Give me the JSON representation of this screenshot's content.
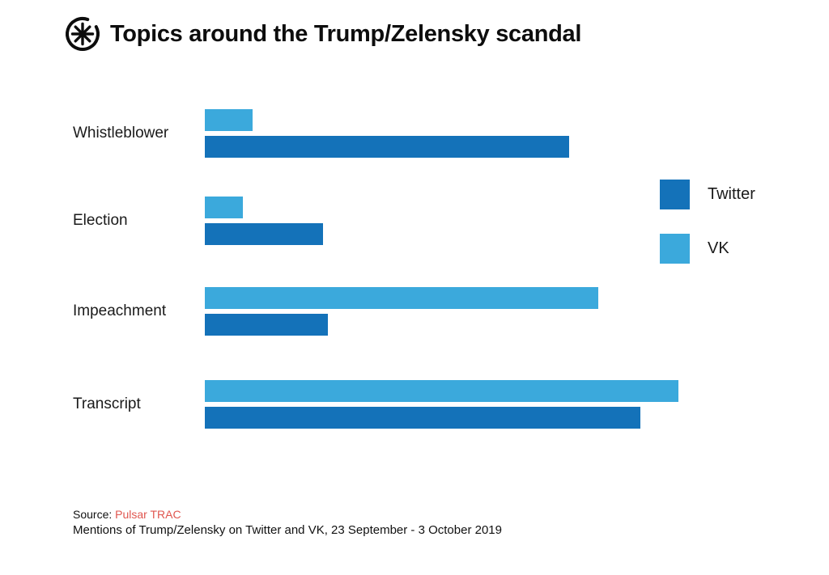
{
  "page": {
    "background": "#ffffff"
  },
  "header": {
    "logo_icon": "pulsar-starburst-icon",
    "title": "Topics around the Trump/Zelensky scandal"
  },
  "colors": {
    "twitter": "#1472B9",
    "vk": "#3BA9DC",
    "source_red": "#E0564F",
    "text": "#1a1a1a"
  },
  "legend": {
    "position": "right",
    "items": [
      {
        "label": "Twitter",
        "color": "#1472B9"
      },
      {
        "label": "VK",
        "color": "#3BA9DC"
      }
    ]
  },
  "chart_data": {
    "type": "bar",
    "orientation": "horizontal",
    "title": "Topics around the Trump/Zelensky scandal",
    "categories": [
      "Whistleblower",
      "Election",
      "Impeachment",
      "Transcript"
    ],
    "series": [
      {
        "name": "VK",
        "color": "#3BA9DC",
        "values": [
          10,
          8,
          83,
          100
        ]
      },
      {
        "name": "Twitter",
        "color": "#1472B9",
        "values": [
          77,
          25,
          26,
          92
        ]
      }
    ],
    "xlabel": "",
    "ylabel": "",
    "xlim": [
      0,
      100
    ],
    "values_are": "relative bar length, percent of longest bar (Transcript on VK); no numeric axis shown",
    "gridlines": false,
    "axis_ticks_visible": false,
    "legend_position": "right",
    "bar_order_within_group": [
      "VK (top)",
      "Twitter (bottom)"
    ]
  },
  "footer": {
    "source_prefix": "Source:",
    "source_name": "Pulsar TRAC",
    "caption": "Mentions of Trump/Zelensky on Twitter and VK, 23 September - 3  October 2019"
  }
}
